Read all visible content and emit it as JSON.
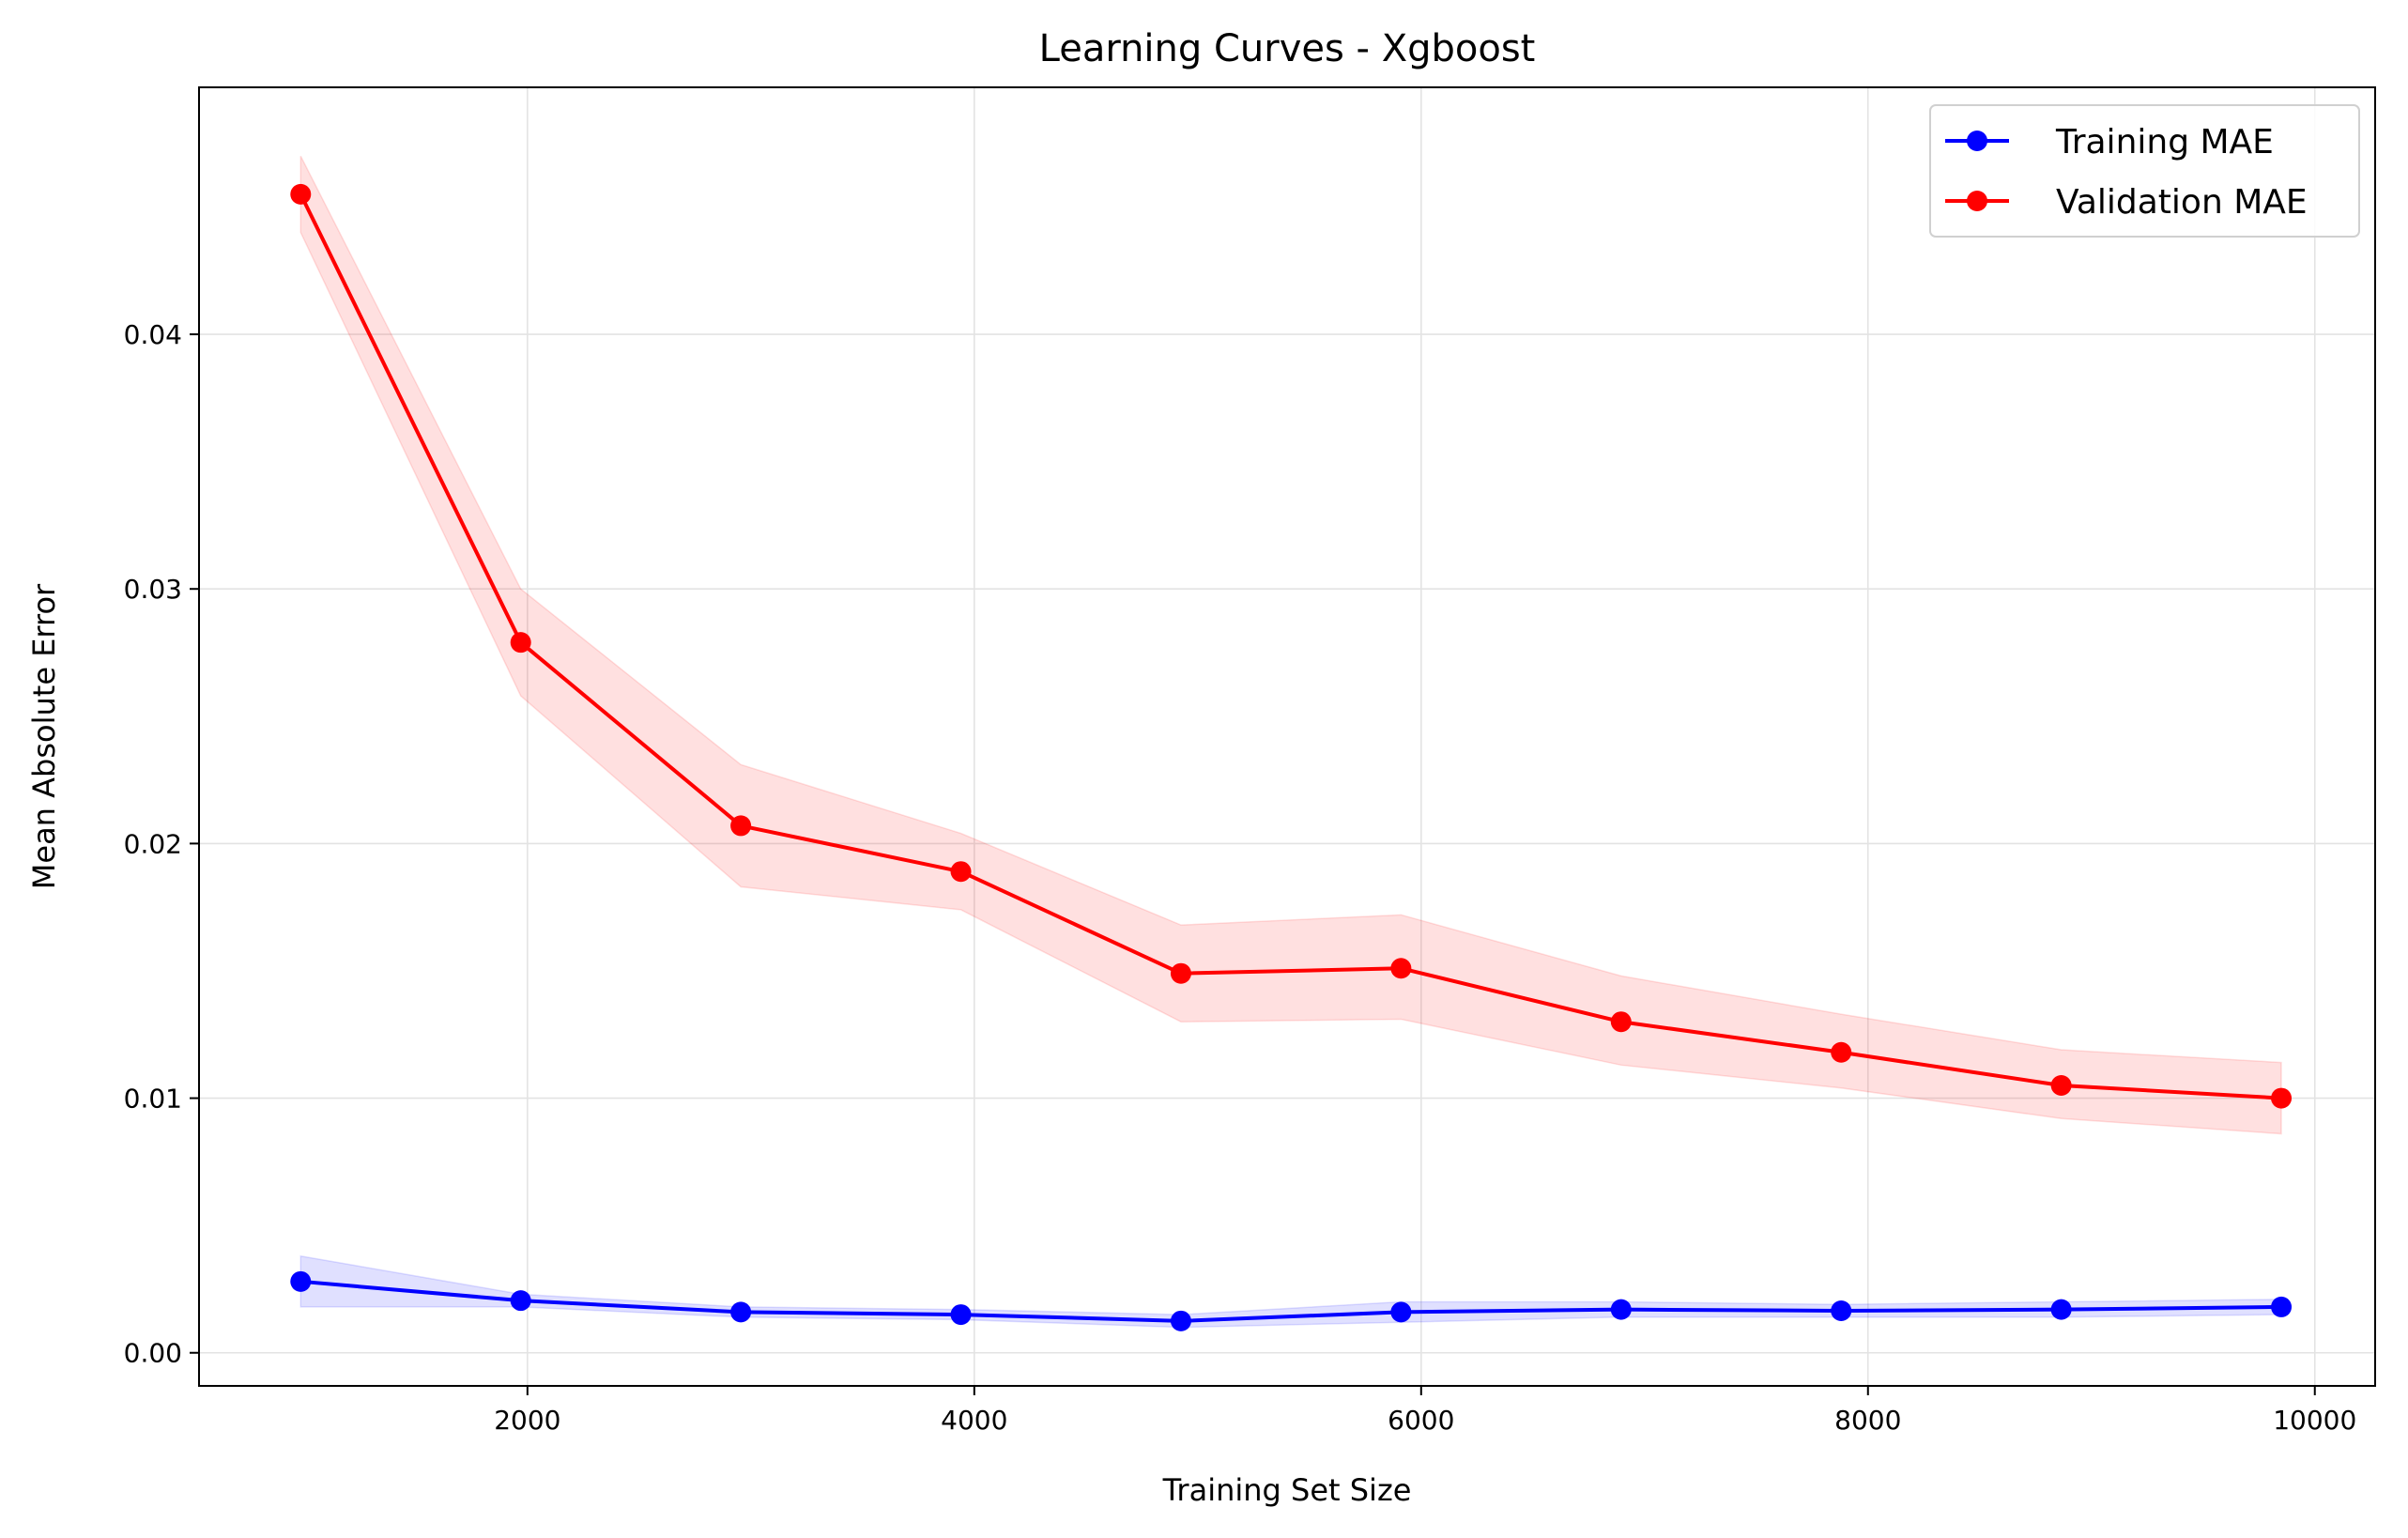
{
  "chart_data": {
    "type": "line",
    "title": "Learning Curves - Xgboost",
    "xlabel": "Training Set Size",
    "ylabel": "Mean Absolute Error",
    "xlim": [
      530,
      10270
    ],
    "ylim": [
      -0.0013,
      0.0497
    ],
    "xticks": [
      2000,
      4000,
      6000,
      8000,
      10000
    ],
    "xtick_labels": [
      "2000",
      "4000",
      "6000",
      "8000",
      "10000"
    ],
    "yticks": [
      0.0,
      0.01,
      0.02,
      0.03,
      0.04
    ],
    "ytick_labels": [
      "0.00",
      "0.01",
      "0.02",
      "0.03",
      "0.04"
    ],
    "grid": true,
    "legend_position": "top-right",
    "x": [
      985,
      1970,
      2955,
      3940,
      4925,
      5910,
      6895,
      7880,
      8865,
      9850
    ],
    "series": [
      {
        "name": "Training MAE",
        "color": "#0000ff",
        "band_color": "#0000ff",
        "values": [
          0.0028,
          0.00205,
          0.0016,
          0.0015,
          0.00125,
          0.0016,
          0.0017,
          0.00165,
          0.0017,
          0.0018
        ],
        "lower": [
          0.0018,
          0.0018,
          0.0014,
          0.0013,
          0.001,
          0.0012,
          0.0014,
          0.0014,
          0.0014,
          0.0015
        ],
        "upper": [
          0.0038,
          0.0023,
          0.0018,
          0.0017,
          0.0015,
          0.002,
          0.002,
          0.0019,
          0.002,
          0.0021
        ]
      },
      {
        "name": "Validation MAE",
        "color": "#ff0000",
        "band_color": "#ff0000",
        "values": [
          0.0455,
          0.0279,
          0.0207,
          0.0189,
          0.0149,
          0.0151,
          0.013,
          0.0118,
          0.0105,
          0.01
        ],
        "lower": [
          0.044,
          0.0258,
          0.0183,
          0.0174,
          0.013,
          0.0131,
          0.0113,
          0.0104,
          0.0092,
          0.0086
        ],
        "upper": [
          0.047,
          0.03,
          0.0231,
          0.0204,
          0.0168,
          0.0172,
          0.0148,
          0.0133,
          0.0119,
          0.0114
        ]
      }
    ]
  }
}
